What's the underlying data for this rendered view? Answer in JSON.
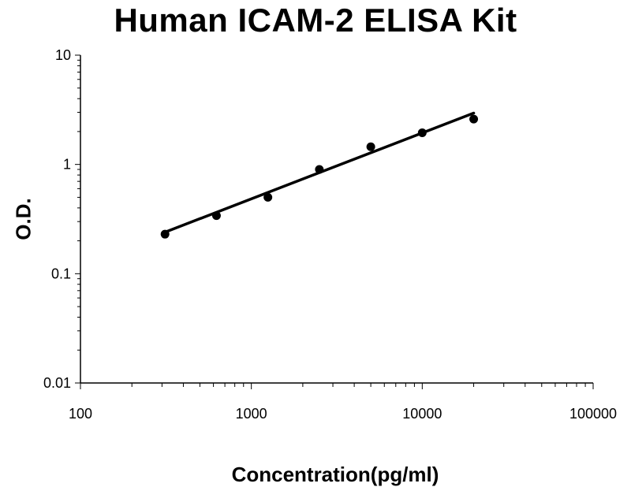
{
  "chart_data": {
    "type": "scatter",
    "title": "Human ICAM-2 ELISA Kit",
    "xlabel": "Concentration(pg/ml)",
    "ylabel": "O.D.",
    "x_scale": "log",
    "y_scale": "log",
    "xlim": [
      100,
      100000
    ],
    "ylim": [
      0.01,
      10
    ],
    "x_ticks": [
      "100",
      "1000",
      "10000",
      "100000"
    ],
    "y_ticks": [
      "0.01",
      "0.1",
      "1",
      "10"
    ],
    "grid": false,
    "series": [
      {
        "x": [
          312.5,
          625,
          1250,
          2500,
          5000,
          10000,
          20000
        ],
        "y": [
          0.23,
          0.34,
          0.5,
          0.9,
          1.45,
          1.95,
          2.6
        ]
      }
    ],
    "fit_line": {
      "x": [
        312.5,
        20000
      ],
      "y": [
        0.24,
        2.95
      ]
    }
  }
}
